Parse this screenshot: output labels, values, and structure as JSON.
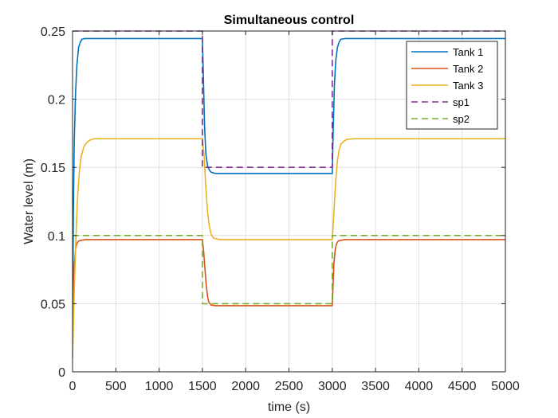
{
  "chart_data": {
    "type": "line",
    "title": "Simultaneous control",
    "xlabel": "time (s)",
    "ylabel": "Water level (m)",
    "xlim": [
      0,
      5000
    ],
    "ylim": [
      0,
      0.25
    ],
    "x_ticks": [
      0,
      500,
      1000,
      1500,
      2000,
      2500,
      3000,
      3500,
      4000,
      4500,
      5000
    ],
    "y_ticks": [
      0,
      0.05,
      0.1,
      0.15,
      0.2,
      0.25
    ],
    "x_tick_labels": [
      "0",
      "500",
      "1000",
      "1500",
      "2000",
      "2500",
      "3000",
      "3500",
      "4000",
      "4500",
      "5000"
    ],
    "y_tick_labels": [
      "0",
      "0.05",
      "0.1",
      "0.15",
      "0.2",
      "0.25"
    ],
    "grid": true,
    "legend_position": "top-right",
    "series": [
      {
        "name": "Tank 1",
        "color": "#0072BD",
        "dash": "solid",
        "x": [
          0,
          10,
          20,
          35,
          50,
          70,
          90,
          110,
          140,
          1500,
          1512,
          1525,
          1540,
          1560,
          1580,
          1600,
          1650,
          3000,
          3010,
          3025,
          3040,
          3060,
          3080,
          3100,
          3150,
          5000
        ],
        "y": [
          0.03,
          0.12,
          0.17,
          0.205,
          0.225,
          0.238,
          0.242,
          0.244,
          0.2445,
          0.2445,
          0.215,
          0.18,
          0.16,
          0.151,
          0.148,
          0.1465,
          0.1455,
          0.1455,
          0.175,
          0.21,
          0.228,
          0.238,
          0.242,
          0.244,
          0.2445,
          0.2445
        ]
      },
      {
        "name": "Tank 2",
        "color": "#D95319",
        "dash": "solid",
        "x": [
          0,
          10,
          20,
          35,
          50,
          70,
          100,
          150,
          1500,
          1515,
          1530,
          1545,
          1560,
          1575,
          1600,
          1650,
          3000,
          3010,
          3020,
          3035,
          3050,
          3070,
          3100,
          3150,
          5000
        ],
        "y": [
          0.01,
          0.055,
          0.078,
          0.09,
          0.094,
          0.096,
          0.0965,
          0.097,
          0.097,
          0.088,
          0.075,
          0.063,
          0.055,
          0.051,
          0.049,
          0.0485,
          0.0485,
          0.065,
          0.08,
          0.09,
          0.094,
          0.096,
          0.0965,
          0.097,
          0.097
        ]
      },
      {
        "name": "Tank 3",
        "color": "#EDB120",
        "dash": "solid",
        "x": [
          0,
          20,
          40,
          60,
          80,
          100,
          130,
          160,
          200,
          250,
          1500,
          1520,
          1540,
          1560,
          1580,
          1600,
          1630,
          1700,
          3000,
          3020,
          3040,
          3060,
          3080,
          3100,
          3130,
          3170,
          3250,
          5000
        ],
        "y": [
          0.01,
          0.06,
          0.1,
          0.13,
          0.148,
          0.158,
          0.165,
          0.168,
          0.17,
          0.171,
          0.171,
          0.158,
          0.135,
          0.117,
          0.107,
          0.101,
          0.098,
          0.097,
          0.097,
          0.118,
          0.14,
          0.155,
          0.163,
          0.167,
          0.169,
          0.1705,
          0.171,
          0.171
        ]
      },
      {
        "name": "sp1",
        "color": "#7E2F8E",
        "dash": "dashed",
        "x": [
          0,
          1500,
          1500,
          3000,
          3000,
          5000
        ],
        "y": [
          0.25,
          0.25,
          0.15,
          0.15,
          0.25,
          0.25
        ]
      },
      {
        "name": "sp2",
        "color": "#77AC30",
        "dash": "dashed",
        "x": [
          0,
          1500,
          1500,
          3000,
          3000,
          5000
        ],
        "y": [
          0.1,
          0.1,
          0.05,
          0.05,
          0.1,
          0.1
        ]
      }
    ]
  }
}
